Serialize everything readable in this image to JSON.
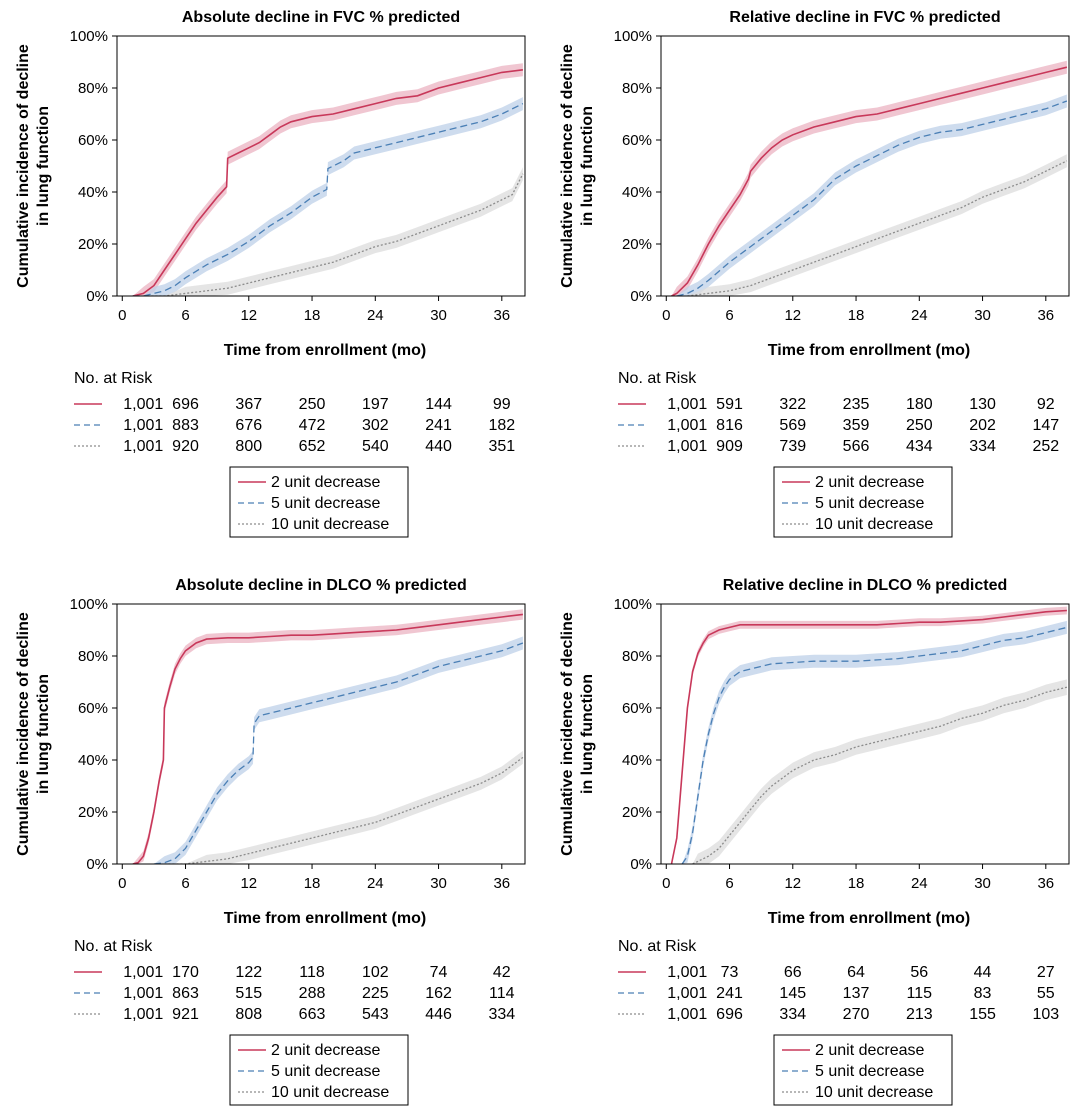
{
  "colors": {
    "two_unit": "#c8385a",
    "five_unit": "#4a7fb5",
    "ten_unit": "#8c8c8c",
    "band_two": "#ebb3c1",
    "band_five": "#bed0e8",
    "band_ten": "#dcdcdc"
  },
  "legend_labels": [
    "2 unit decrease",
    "5 unit decrease",
    "10 unit decrease"
  ],
  "risk_heading": "No. at Risk",
  "chart_data": [
    {
      "type": "line",
      "title": "Absolute decline in FVC % predicted",
      "xlabel": "Time from enrollment (mo)",
      "ylabel_line1": "Cumulative incidence of decline",
      "ylabel_line2": "in lung function",
      "xlim": [
        -0.5,
        38.2
      ],
      "ylim": [
        0,
        100
      ],
      "xticks": [
        "0",
        "6",
        "12",
        "18",
        "24",
        "30",
        "36"
      ],
      "yticks": [
        "0%",
        "20%",
        "40%",
        "60%",
        "80%",
        "100%"
      ],
      "legend": [
        "2 unit decrease",
        "5 unit decrease",
        "10 unit decrease"
      ],
      "series": [
        {
          "name": "2 unit decrease",
          "style": "solid",
          "ci_halfwidth": 2.5,
          "x": [
            1,
            2,
            3,
            4,
            5,
            6,
            7,
            8,
            9,
            9.9,
            10,
            11,
            12,
            13,
            14,
            15,
            16,
            18,
            20,
            22,
            24,
            26,
            28,
            30,
            32,
            34,
            36,
            38
          ],
          "y": [
            0,
            1,
            4,
            10,
            16,
            22,
            28,
            33,
            38,
            42,
            53,
            55,
            57,
            59,
            62,
            65,
            67,
            69,
            70,
            72,
            74,
            76,
            77,
            80,
            82,
            84,
            86,
            87
          ]
        },
        {
          "name": "5 unit decrease",
          "style": "dashed",
          "ci_halfwidth": 2.5,
          "x": [
            1,
            2,
            3,
            4,
            5,
            6,
            8,
            10,
            12,
            14,
            16,
            18,
            19.4,
            19.5,
            21,
            22,
            24,
            26,
            28,
            30,
            32,
            34,
            36,
            38
          ],
          "y": [
            0,
            0,
            1,
            2,
            4,
            7,
            12,
            16,
            21,
            27,
            32,
            38,
            41,
            49,
            52,
            55,
            57,
            59,
            61,
            63,
            65,
            67,
            70,
            74
          ]
        },
        {
          "name": "10 unit decrease",
          "style": "dotted",
          "ci_halfwidth": 2.5,
          "x": [
            2,
            4,
            6,
            8,
            10,
            12,
            14,
            16,
            18,
            20,
            22,
            24,
            26,
            28,
            30,
            32,
            34,
            36,
            37,
            38
          ],
          "y": [
            0,
            0,
            1,
            2,
            3,
            5,
            7,
            9,
            11,
            13,
            16,
            19,
            21,
            24,
            27,
            30,
            33,
            37,
            39,
            47
          ]
        }
      ],
      "risk_table": {
        "rows": [
          [
            "1,001",
            "696",
            "367",
            "250",
            "197",
            "144",
            "99"
          ],
          [
            "1,001",
            "883",
            "676",
            "472",
            "302",
            "241",
            "182"
          ],
          [
            "1,001",
            "920",
            "800",
            "652",
            "540",
            "440",
            "351"
          ]
        ]
      }
    },
    {
      "type": "line",
      "title": "Relative decline in FVC % predicted",
      "xlabel": "Time from enrollment (mo)",
      "ylabel_line1": "Cumulative incidence of decline",
      "ylabel_line2": "in lung function",
      "xlim": [
        -0.5,
        38.2
      ],
      "ylim": [
        0,
        100
      ],
      "xticks": [
        "0",
        "6",
        "12",
        "18",
        "24",
        "30",
        "36"
      ],
      "yticks": [
        "0%",
        "20%",
        "40%",
        "60%",
        "80%",
        "100%"
      ],
      "legend": [
        "2 unit decrease",
        "5 unit decrease",
        "10 unit decrease"
      ],
      "series": [
        {
          "name": "2 unit decrease",
          "style": "solid",
          "ci_halfwidth": 2.5,
          "x": [
            0.5,
            1,
            2,
            3,
            4,
            5,
            6,
            7,
            7.8,
            8,
            9,
            10,
            11,
            12,
            14,
            16,
            18,
            20,
            22,
            24,
            26,
            28,
            30,
            32,
            34,
            36,
            38
          ],
          "y": [
            0,
            1,
            5,
            12,
            20,
            27,
            33,
            39,
            45,
            48,
            53,
            57,
            60,
            62,
            65,
            67,
            69,
            70,
            72,
            74,
            76,
            78,
            80,
            82,
            84,
            86,
            88
          ]
        },
        {
          "name": "5 unit decrease",
          "style": "dashed",
          "ci_halfwidth": 2.5,
          "x": [
            1,
            2,
            3,
            4,
            6,
            8,
            10,
            12,
            14,
            16,
            18,
            20,
            22,
            24,
            26,
            28,
            30,
            32,
            34,
            36,
            38
          ],
          "y": [
            0,
            1,
            3,
            6,
            13,
            19,
            25,
            31,
            37,
            45,
            50,
            54,
            58,
            61,
            63,
            64,
            66,
            68,
            70,
            72,
            75
          ]
        },
        {
          "name": "10 unit decrease",
          "style": "dotted",
          "ci_halfwidth": 2.5,
          "x": [
            2,
            4,
            6,
            8,
            10,
            12,
            14,
            16,
            18,
            20,
            22,
            24,
            26,
            28,
            30,
            32,
            34,
            36,
            38
          ],
          "y": [
            0,
            1,
            2,
            4,
            7,
            10,
            13,
            16,
            19,
            22,
            25,
            28,
            31,
            34,
            38,
            41,
            44,
            48,
            52
          ]
        }
      ],
      "risk_table": {
        "rows": [
          [
            "1,001",
            "591",
            "322",
            "235",
            "180",
            "130",
            "92"
          ],
          [
            "1,001",
            "816",
            "569",
            "359",
            "250",
            "202",
            "147"
          ],
          [
            "1,001",
            "909",
            "739",
            "566",
            "434",
            "334",
            "252"
          ]
        ]
      }
    },
    {
      "type": "line",
      "title": "Absolute decline in DLCO % predicted",
      "xlabel": "Time from enrollment (mo)",
      "ylabel_line1": "Cumulative incidence of decline",
      "ylabel_line2": "in lung function",
      "xlim": [
        -0.5,
        38.2
      ],
      "ylim": [
        0,
        100
      ],
      "xticks": [
        "0",
        "6",
        "12",
        "18",
        "24",
        "30",
        "36"
      ],
      "yticks": [
        "0%",
        "20%",
        "40%",
        "60%",
        "80%",
        "100%"
      ],
      "legend": [
        "2 unit decrease",
        "5 unit decrease",
        "10 unit decrease"
      ],
      "series": [
        {
          "name": "2 unit decrease",
          "style": "solid",
          "ci_halfwidth": 2.0,
          "x": [
            1,
            1.5,
            2,
            2.5,
            3,
            3.5,
            3.9,
            4,
            4.5,
            5,
            5.5,
            6,
            7,
            8,
            10,
            12,
            14,
            16,
            18,
            20,
            22,
            24,
            26,
            28,
            30,
            32,
            34,
            36,
            38
          ],
          "y": [
            0,
            0.5,
            3,
            10,
            20,
            32,
            40,
            60,
            68,
            75,
            79,
            82,
            85,
            86.5,
            87,
            87,
            87.5,
            88,
            88,
            88.5,
            89,
            89.5,
            90,
            91,
            92,
            93,
            94,
            95,
            96
          ]
        },
        {
          "name": "5 unit decrease",
          "style": "dashed",
          "ci_halfwidth": 2.5,
          "x": [
            3,
            4,
            5,
            6,
            7,
            8,
            9,
            10,
            11,
            12,
            12.4,
            12.5,
            13,
            14,
            16,
            18,
            20,
            22,
            24,
            26,
            28,
            30,
            32,
            34,
            36,
            38
          ],
          "y": [
            0,
            0.5,
            2,
            6,
            13,
            20,
            27,
            32,
            36,
            39,
            41,
            54,
            57,
            58,
            60,
            62,
            64,
            66,
            68,
            70,
            73,
            76,
            78,
            80,
            82,
            85
          ]
        },
        {
          "name": "10 unit decrease",
          "style": "dotted",
          "ci_halfwidth": 2.5,
          "x": [
            4,
            6,
            8,
            10,
            12,
            14,
            16,
            18,
            20,
            22,
            24,
            26,
            28,
            30,
            32,
            34,
            36,
            38
          ],
          "y": [
            0,
            0,
            1,
            2,
            4,
            6,
            8,
            10,
            12,
            14,
            16,
            19,
            22,
            25,
            28,
            31,
            35,
            41
          ]
        }
      ],
      "risk_table": {
        "rows": [
          [
            "1,001",
            "170",
            "122",
            "118",
            "102",
            "74",
            "42"
          ],
          [
            "1,001",
            "863",
            "515",
            "288",
            "225",
            "162",
            "114"
          ],
          [
            "1,001",
            "921",
            "808",
            "663",
            "543",
            "446",
            "334"
          ]
        ]
      }
    },
    {
      "type": "line",
      "title": "Relative decline in DLCO % predicted",
      "xlabel": "Time from enrollment (mo)",
      "ylabel_line1": "Cumulative incidence of decline",
      "ylabel_line2": "in lung function",
      "xlim": [
        -0.5,
        38.2
      ],
      "ylim": [
        0,
        100
      ],
      "xticks": [
        "0",
        "6",
        "12",
        "18",
        "24",
        "30",
        "36"
      ],
      "yticks": [
        "0%",
        "20%",
        "40%",
        "60%",
        "80%",
        "100%"
      ],
      "legend": [
        "2 unit decrease",
        "5 unit decrease",
        "10 unit decrease"
      ],
      "series": [
        {
          "name": "2 unit decrease",
          "style": "solid",
          "ci_halfwidth": 1.5,
          "x": [
            0.5,
            1,
            1.5,
            2,
            2.5,
            3,
            3.5,
            4,
            5,
            6,
            7,
            8,
            10,
            12,
            14,
            16,
            18,
            20,
            22,
            24,
            26,
            28,
            30,
            32,
            34,
            36,
            38
          ],
          "y": [
            0,
            10,
            35,
            60,
            74,
            81,
            85,
            88,
            90,
            91,
            92,
            92,
            92,
            92,
            92,
            92,
            92,
            92,
            92.5,
            93,
            93,
            93.5,
            94,
            95,
            96,
            97,
            97.5
          ]
        },
        {
          "name": "5 unit decrease",
          "style": "dashed",
          "ci_halfwidth": 2.5,
          "x": [
            1.5,
            2,
            2.5,
            3,
            3.5,
            4,
            4.5,
            5,
            5.5,
            6,
            7,
            8,
            10,
            12,
            14,
            16,
            18,
            20,
            22,
            24,
            26,
            28,
            30,
            32,
            34,
            36,
            38
          ],
          "y": [
            0,
            3,
            12,
            26,
            40,
            50,
            58,
            64,
            68,
            71,
            74,
            75,
            77,
            77.5,
            78,
            78,
            78,
            78.5,
            79,
            80,
            81,
            82,
            84,
            86,
            87,
            89,
            91
          ]
        },
        {
          "name": "10 unit decrease",
          "style": "dotted",
          "ci_halfwidth": 3.0,
          "x": [
            2.5,
            3,
            4,
            5,
            6,
            7,
            8,
            9,
            10,
            12,
            14,
            16,
            18,
            20,
            22,
            24,
            26,
            28,
            30,
            32,
            34,
            36,
            38
          ],
          "y": [
            0,
            1,
            3,
            6,
            11,
            16,
            21,
            26,
            30,
            36,
            40,
            42,
            45,
            47,
            49,
            51,
            53,
            56,
            58,
            61,
            63,
            66,
            68
          ]
        }
      ],
      "risk_table": {
        "rows": [
          [
            "1,001",
            "73",
            "66",
            "64",
            "56",
            "44",
            "27"
          ],
          [
            "1,001",
            "241",
            "145",
            "137",
            "115",
            "83",
            "55"
          ],
          [
            "1,001",
            "696",
            "334",
            "270",
            "213",
            "155",
            "103"
          ]
        ]
      }
    }
  ]
}
